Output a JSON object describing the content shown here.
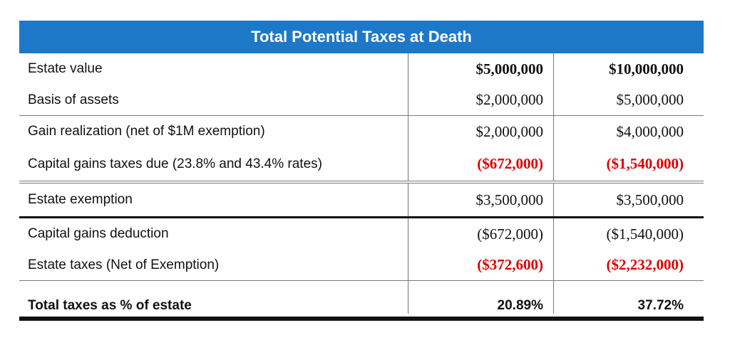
{
  "title": "Total Potential Taxes at Death",
  "rows": [
    {
      "label": "Estate value",
      "a": "$5,000,000",
      "b": "$10,000,000",
      "style": "bold"
    },
    {
      "label": "Basis of assets",
      "a": "$2,000,000",
      "b": "$5,000,000",
      "style": "normal"
    },
    {
      "label": "Gain realization (net of $1M exemption)",
      "a": "$2,000,000",
      "b": "$4,000,000",
      "style": "normal"
    },
    {
      "label": "Capital gains taxes due (23.8% and 43.4% rates)",
      "a": "($672,000)",
      "b": "($1,540,000)",
      "style": "red"
    },
    {
      "label": "Estate exemption",
      "a": "$3,500,000",
      "b": "$3,500,000",
      "style": "normal"
    },
    {
      "label": "Capital gains deduction",
      "a": "($672,000)",
      "b": "($1,540,000)",
      "style": "normal"
    },
    {
      "label": "Estate taxes (Net of Exemption)",
      "a": "($372,600)",
      "b": "($2,232,000)",
      "style": "red"
    },
    {
      "label": "Total taxes as % of estate",
      "a": "20.89%",
      "b": "37.72%",
      "style": "total"
    }
  ],
  "colors": {
    "header_bg": "#1e78c8",
    "header_text": "#ffffff",
    "negative_highlight": "#e00000"
  }
}
